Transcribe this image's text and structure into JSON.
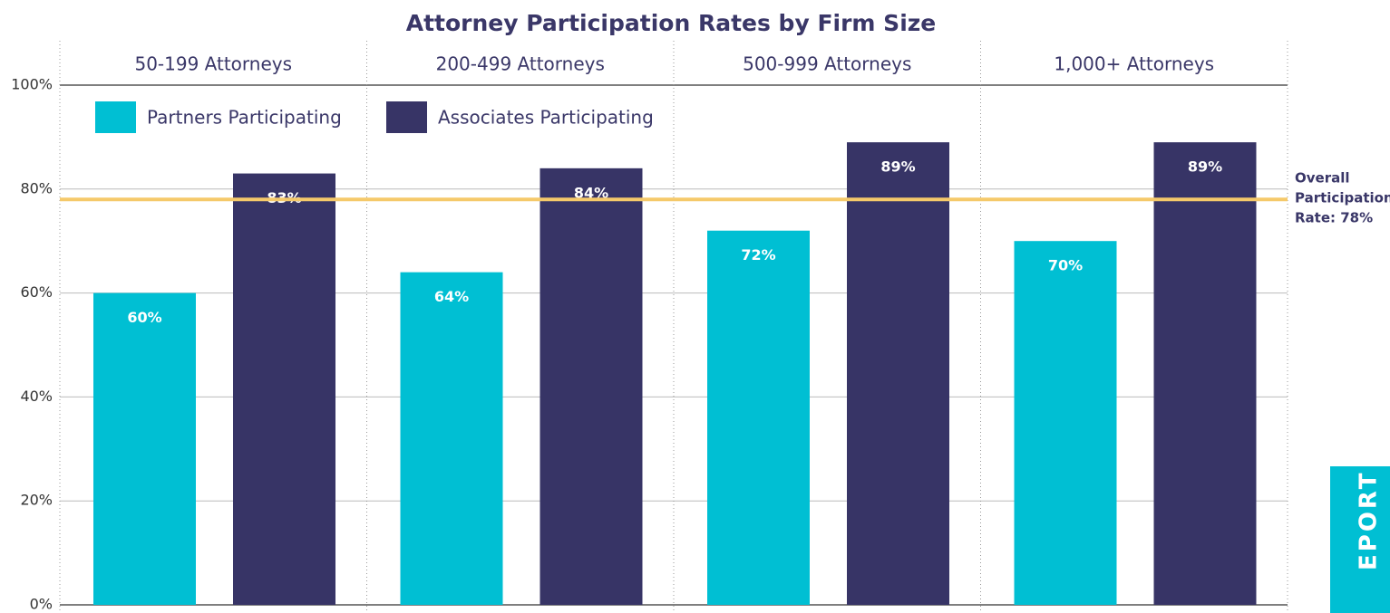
{
  "chart_data": {
    "type": "bar",
    "title": "Attorney Participation Rates by Firm Size",
    "categories": [
      "50-199 Attorneys",
      "200-499 Attorneys",
      "500-999 Attorneys",
      "1,000+ Attorneys"
    ],
    "series": [
      {
        "name": "Partners Participating",
        "color": "#00bfd3",
        "values": [
          60,
          64,
          72,
          70
        ],
        "value_labels": [
          "60%",
          "64%",
          "72%",
          "70%"
        ]
      },
      {
        "name": "Associates Participating",
        "color": "#373466",
        "values": [
          83,
          84,
          89,
          89
        ],
        "value_labels": [
          "83%",
          "84%",
          "89%",
          "89%"
        ]
      }
    ],
    "ylim": [
      0,
      100
    ],
    "yticks": [
      {
        "value": 0,
        "label": "0%"
      },
      {
        "value": 20,
        "label": "20%"
      },
      {
        "value": 40,
        "label": "40%"
      },
      {
        "value": 60,
        "label": "60%"
      },
      {
        "value": 80,
        "label": "80%"
      },
      {
        "value": 100,
        "label": "100%"
      }
    ],
    "grid": true,
    "reference_line": {
      "value": 78,
      "color": "#f5c96a",
      "label": [
        "Overall",
        "Participation",
        "Rate: 78%"
      ]
    },
    "side_tab": "EPORT"
  }
}
